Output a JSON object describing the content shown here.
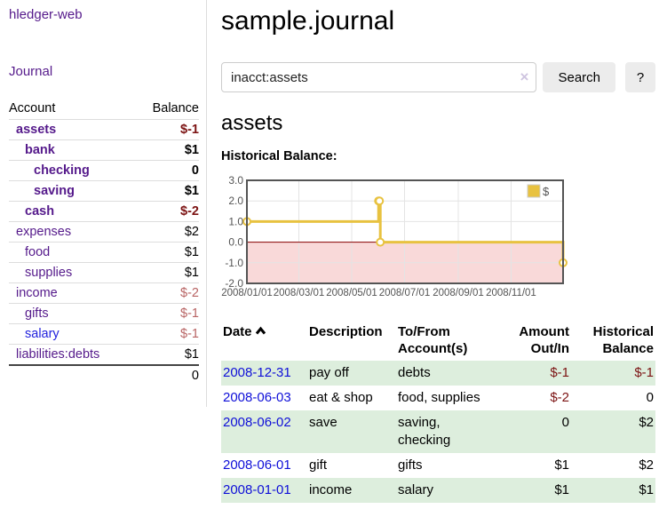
{
  "app": {
    "brand": "hledger-web"
  },
  "colors": {
    "accent_purple": "#551a8b",
    "link_blue": "#2222dd",
    "date_blue": "#0f0fd8",
    "neg_strong": "#7c1313",
    "neg_soft": "#b86464",
    "row_green": "#ddeedd",
    "chart_line_gold": "#e8c240",
    "chart_neg_fill": "#f9d9d9",
    "chart_zero_line": "#8b0000",
    "chart_border": "#545454"
  },
  "sidebar": {
    "journal_link": "Journal",
    "table": {
      "headers": {
        "account": "Account",
        "balance": "Balance"
      },
      "rows": [
        {
          "account": "assets",
          "balance": "$-1",
          "indent": 0,
          "bold": true,
          "link": "purple",
          "bal_class": "neg-strong"
        },
        {
          "account": "bank",
          "balance": "$1",
          "indent": 1,
          "bold": true,
          "link": "purple",
          "bal_class": ""
        },
        {
          "account": "checking",
          "balance": "0",
          "indent": 2,
          "bold": true,
          "link": "purple",
          "bal_class": ""
        },
        {
          "account": "saving",
          "balance": "$1",
          "indent": 2,
          "bold": true,
          "link": "purple",
          "bal_class": ""
        },
        {
          "account": "cash",
          "balance": "$-2",
          "indent": 1,
          "bold": true,
          "link": "purple",
          "bal_class": "neg-strong"
        },
        {
          "account": "expenses",
          "balance": "$2",
          "indent": 0,
          "bold": false,
          "link": "purple",
          "bal_class": ""
        },
        {
          "account": "food",
          "balance": "$1",
          "indent": 1,
          "bold": false,
          "link": "purple",
          "bal_class": ""
        },
        {
          "account": "supplies",
          "balance": "$1",
          "indent": 1,
          "bold": false,
          "link": "purple",
          "bal_class": ""
        },
        {
          "account": "income",
          "balance": "$-2",
          "indent": 0,
          "bold": false,
          "link": "purple",
          "bal_class": "neg-soft"
        },
        {
          "account": "gifts",
          "balance": "$-1",
          "indent": 1,
          "bold": false,
          "link": "purple",
          "bal_class": "neg-soft"
        },
        {
          "account": "salary",
          "balance": "$-1",
          "indent": 1,
          "bold": false,
          "link": "blue",
          "bal_class": "neg-soft"
        },
        {
          "account": "liabilities:debts",
          "balance": "$1",
          "indent": 0,
          "bold": false,
          "link": "purple",
          "bal_class": ""
        }
      ],
      "total": "0"
    }
  },
  "main": {
    "title": "sample.journal",
    "search": {
      "value": "inacct:assets",
      "clear_icon": "×",
      "button_label": "Search",
      "help_label": "?"
    },
    "account_heading": "assets",
    "chart_label": "Historical Balance:"
  },
  "chart_data": {
    "type": "line",
    "title": "Historical Balance:",
    "step": true,
    "legend": "$",
    "legend_position": "top-right",
    "grid": true,
    "ylim": [
      -2.0,
      3.0
    ],
    "yticks": [
      "3.0",
      "2.0",
      "1.0",
      "0.0",
      "-1.0",
      "-2.0"
    ],
    "ytick_values": [
      3,
      2,
      1,
      0,
      -1,
      -2
    ],
    "xrange": [
      "2008-01-01",
      "2008-12-31"
    ],
    "xticks": [
      "2008/01/01",
      "2008/03/01",
      "2008/05/01",
      "2008/07/01",
      "2008/09/01",
      "2008/11/01"
    ],
    "series": [
      {
        "name": "$",
        "color": "#e8c240",
        "points": [
          {
            "x": "2008-01-01",
            "y": 1
          },
          {
            "x": "2008-06-01",
            "y": 2
          },
          {
            "x": "2008-06-02",
            "y": 2
          },
          {
            "x": "2008-06-03",
            "y": 0
          },
          {
            "x": "2008-12-31",
            "y": -1
          }
        ]
      }
    ]
  },
  "register": {
    "headers": {
      "date": "Date",
      "description": "Description",
      "accounts": "To/From Account(s)",
      "amount": "Amount Out/In",
      "balance": "Historical Balance"
    },
    "rows": [
      {
        "date": "2008-12-31",
        "description": "pay off",
        "accounts": "debts",
        "amount": "$-1",
        "balance": "$-1",
        "amount_class": "neg-strong",
        "balance_class": "neg-strong",
        "shaded": true
      },
      {
        "date": "2008-06-03",
        "description": "eat & shop",
        "accounts": "food, supplies",
        "amount": "$-2",
        "balance": "0",
        "amount_class": "neg-strong",
        "balance_class": "",
        "shaded": false
      },
      {
        "date": "2008-06-02",
        "description": "save",
        "accounts": "saving, checking",
        "amount": "0",
        "balance": "$2",
        "amount_class": "",
        "balance_class": "",
        "shaded": true
      },
      {
        "date": "2008-06-01",
        "description": "gift",
        "accounts": "gifts",
        "amount": "$1",
        "balance": "$2",
        "amount_class": "",
        "balance_class": "",
        "shaded": false
      },
      {
        "date": "2008-01-01",
        "description": "income",
        "accounts": "salary",
        "amount": "$1",
        "balance": "$1",
        "amount_class": "",
        "balance_class": "",
        "shaded": true
      }
    ]
  }
}
